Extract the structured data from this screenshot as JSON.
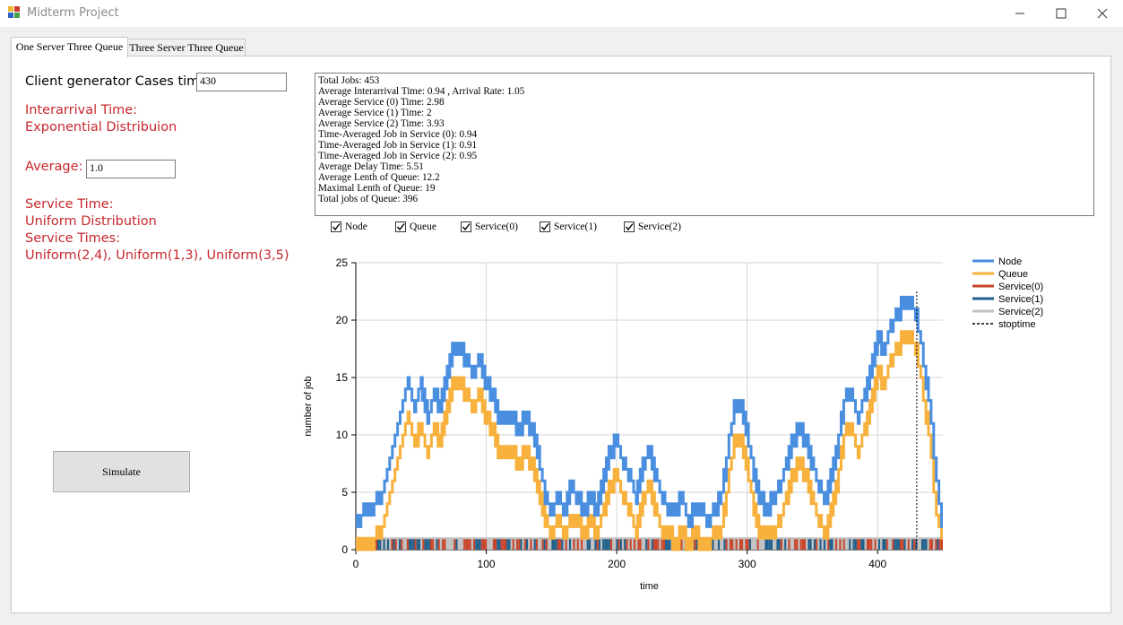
{
  "window": {
    "title": "Midterm Project"
  },
  "tabs": [
    {
      "label": "One Server Three Queue"
    },
    {
      "label": "Three Server Three Queue"
    }
  ],
  "form": {
    "cases_label": "Client generator Cases time",
    "cases_value": "430",
    "interarrival_line1": "Interarrival Time:",
    "interarrival_line2": "Exponential Distribuion",
    "average_label": "Average:",
    "average_value": "1.0",
    "service_line1": "Service Time:",
    "service_line2": "Uniform Distribution",
    "service_line3": "Service Times:",
    "service_line4": "Uniform(2,4), Uniform(1,3), Uniform(3,5)",
    "simulate_label": "Simulate"
  },
  "stats": [
    "Total Jobs: 453",
    "Average Interarrival Time: 0.94 , Arrival Rate: 1.05",
    "Average Service (0) Time: 2.98",
    "Average Service (1) Time: 2",
    "Average Service (2) Time: 3.93",
    "Time-Averaged Job in Service (0): 0.94",
    "Time-Averaged Job in Service (1): 0.91",
    "Time-Averaged Job in Service (2): 0.95",
    "Average Delay Time: 5.51",
    "Average Lenth of Queue: 12.2",
    "Maximal Lenth of Queue: 19",
    "Total jobs of Queue: 396"
  ],
  "checkboxes": [
    {
      "label": "Node",
      "checked": true
    },
    {
      "label": "Queue",
      "checked": true
    },
    {
      "label": "Service(0)",
      "checked": true
    },
    {
      "label": "Service(1)",
      "checked": true
    },
    {
      "label": "Service(2)",
      "checked": true
    }
  ],
  "chart_data": {
    "type": "line",
    "xlabel": "time",
    "ylabel": "number of job",
    "xlim": [
      0,
      450
    ],
    "ylim": [
      0,
      25
    ],
    "xticks": [
      "0",
      "100",
      "200",
      "300",
      "400"
    ],
    "yticks": [
      "0",
      "5",
      "10",
      "15",
      "20",
      "25"
    ],
    "grid": true,
    "legend_position": "right",
    "legend": [
      "Node",
      "Queue",
      "Service(0)",
      "Service(1)",
      "Service(2)",
      "stoptime"
    ],
    "colors": {
      "Node": "#4a8ee0",
      "Queue": "#f7b13c",
      "Service(0)": "#c8452a",
      "Service(1)": "#1f5f8b",
      "Service(2)": "#c0c0c0",
      "stoptime": "#000000"
    },
    "stoptime": 430,
    "node_points": [
      [
        0,
        2
      ],
      [
        10,
        3
      ],
      [
        20,
        4
      ],
      [
        25,
        7
      ],
      [
        30,
        9
      ],
      [
        35,
        12
      ],
      [
        40,
        14
      ],
      [
        45,
        12
      ],
      [
        50,
        14
      ],
      [
        55,
        11
      ],
      [
        60,
        13
      ],
      [
        65,
        12
      ],
      [
        70,
        15
      ],
      [
        75,
        17
      ],
      [
        80,
        17
      ],
      [
        85,
        16
      ],
      [
        90,
        15
      ],
      [
        95,
        16
      ],
      [
        100,
        14
      ],
      [
        105,
        13
      ],
      [
        110,
        11
      ],
      [
        115,
        11
      ],
      [
        120,
        11
      ],
      [
        125,
        10
      ],
      [
        130,
        11
      ],
      [
        135,
        10
      ],
      [
        140,
        8
      ],
      [
        145,
        4
      ],
      [
        150,
        3
      ],
      [
        155,
        4
      ],
      [
        160,
        3
      ],
      [
        165,
        5
      ],
      [
        170,
        4
      ],
      [
        175,
        3
      ],
      [
        180,
        4
      ],
      [
        185,
        3
      ],
      [
        190,
        6
      ],
      [
        195,
        8
      ],
      [
        200,
        9
      ],
      [
        205,
        7
      ],
      [
        210,
        6
      ],
      [
        215,
        4
      ],
      [
        220,
        7
      ],
      [
        225,
        8
      ],
      [
        230,
        6
      ],
      [
        235,
        4
      ],
      [
        240,
        3
      ],
      [
        245,
        3
      ],
      [
        250,
        4
      ],
      [
        255,
        2
      ],
      [
        260,
        3
      ],
      [
        265,
        3
      ],
      [
        270,
        2
      ],
      [
        275,
        3
      ],
      [
        280,
        4
      ],
      [
        285,
        8
      ],
      [
        290,
        12
      ],
      [
        295,
        12
      ],
      [
        300,
        10
      ],
      [
        305,
        6
      ],
      [
        310,
        4
      ],
      [
        315,
        3
      ],
      [
        320,
        4
      ],
      [
        325,
        5
      ],
      [
        330,
        7
      ],
      [
        335,
        9
      ],
      [
        340,
        10
      ],
      [
        345,
        9
      ],
      [
        350,
        7
      ],
      [
        355,
        5
      ],
      [
        360,
        4
      ],
      [
        365,
        6
      ],
      [
        370,
        9
      ],
      [
        375,
        13
      ],
      [
        380,
        13
      ],
      [
        385,
        11
      ],
      [
        390,
        13
      ],
      [
        395,
        15
      ],
      [
        400,
        18
      ],
      [
        405,
        17
      ],
      [
        410,
        19
      ],
      [
        415,
        20
      ],
      [
        420,
        21
      ],
      [
        425,
        21
      ],
      [
        430,
        20
      ],
      [
        435,
        16
      ],
      [
        440,
        12
      ],
      [
        445,
        6
      ],
      [
        450,
        1
      ]
    ],
    "queue_points": [
      [
        0,
        0
      ],
      [
        10,
        0
      ],
      [
        20,
        1
      ],
      [
        25,
        4
      ],
      [
        30,
        6
      ],
      [
        35,
        9
      ],
      [
        40,
        11
      ],
      [
        45,
        9
      ],
      [
        50,
        10
      ],
      [
        55,
        8
      ],
      [
        60,
        10
      ],
      [
        65,
        9
      ],
      [
        70,
        12
      ],
      [
        75,
        14
      ],
      [
        80,
        14
      ],
      [
        85,
        13
      ],
      [
        90,
        12
      ],
      [
        95,
        13
      ],
      [
        100,
        11
      ],
      [
        105,
        10
      ],
      [
        110,
        8
      ],
      [
        115,
        8
      ],
      [
        120,
        8
      ],
      [
        125,
        7
      ],
      [
        130,
        8
      ],
      [
        135,
        7
      ],
      [
        140,
        5
      ],
      [
        145,
        2
      ],
      [
        150,
        1
      ],
      [
        155,
        2
      ],
      [
        160,
        1
      ],
      [
        165,
        2
      ],
      [
        170,
        2
      ],
      [
        175,
        1
      ],
      [
        180,
        2
      ],
      [
        185,
        1
      ],
      [
        190,
        3
      ],
      [
        195,
        5
      ],
      [
        200,
        6
      ],
      [
        205,
        4
      ],
      [
        210,
        3
      ],
      [
        215,
        1
      ],
      [
        220,
        4
      ],
      [
        225,
        5
      ],
      [
        230,
        3
      ],
      [
        235,
        1
      ],
      [
        240,
        1
      ],
      [
        245,
        0
      ],
      [
        250,
        1
      ],
      [
        255,
        0
      ],
      [
        260,
        1
      ],
      [
        265,
        0
      ],
      [
        270,
        0
      ],
      [
        275,
        1
      ],
      [
        280,
        1
      ],
      [
        285,
        5
      ],
      [
        290,
        9
      ],
      [
        295,
        9
      ],
      [
        300,
        7
      ],
      [
        305,
        3
      ],
      [
        310,
        1
      ],
      [
        315,
        1
      ],
      [
        320,
        1
      ],
      [
        325,
        2
      ],
      [
        330,
        4
      ],
      [
        335,
        6
      ],
      [
        340,
        7
      ],
      [
        345,
        6
      ],
      [
        350,
        4
      ],
      [
        355,
        2
      ],
      [
        360,
        1
      ],
      [
        365,
        3
      ],
      [
        370,
        6
      ],
      [
        375,
        10
      ],
      [
        380,
        10
      ],
      [
        385,
        8
      ],
      [
        390,
        10
      ],
      [
        395,
        12
      ],
      [
        400,
        15
      ],
      [
        405,
        14
      ],
      [
        410,
        16
      ],
      [
        415,
        17
      ],
      [
        420,
        18
      ],
      [
        425,
        18
      ],
      [
        430,
        17
      ],
      [
        435,
        13
      ],
      [
        440,
        9
      ],
      [
        445,
        3
      ],
      [
        450,
        0
      ]
    ]
  }
}
